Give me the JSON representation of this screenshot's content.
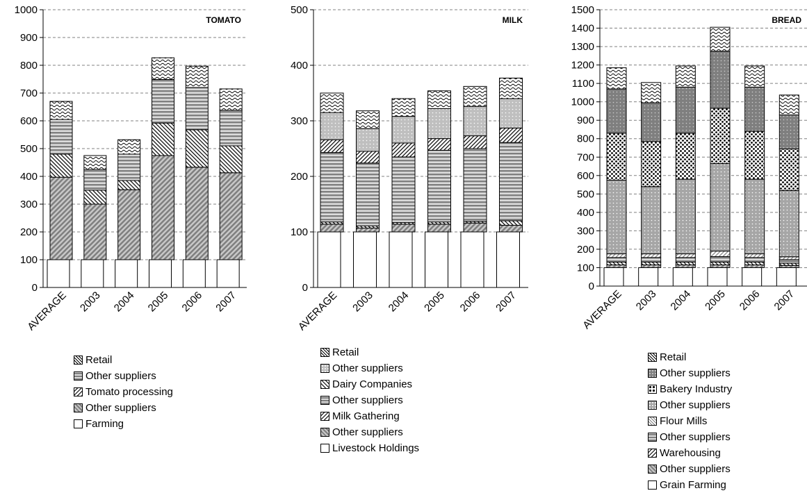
{
  "chart_data": [
    {
      "type": "bar",
      "stacked": true,
      "title": "TOMATO",
      "categories": [
        "AVERAGE",
        "2003",
        "2004",
        "2005",
        "2006",
        "2007"
      ],
      "ylim": [
        0,
        1000
      ],
      "yticks": [
        0,
        100,
        200,
        300,
        400,
        500,
        600,
        700,
        800,
        900,
        1000
      ],
      "grid": true,
      "series": [
        {
          "name": "Farming",
          "pattern": "farm",
          "values": [
            100,
            100,
            100,
            100,
            100,
            100
          ]
        },
        {
          "name": "Other suppliers",
          "pattern": "diag",
          "values": [
            297,
            200,
            252,
            375,
            333,
            313
          ]
        },
        {
          "name": "Tomato processing",
          "pattern": "proc",
          "values": [
            83,
            50,
            33,
            117,
            135,
            97
          ]
        },
        {
          "name": "Other suppliers",
          "pattern": "horiz",
          "values": [
            125,
            75,
            95,
            157,
            152,
            128
          ]
        },
        {
          "name": "Retail",
          "pattern": "retail",
          "values": [
            65,
            50,
            52,
            78,
            77,
            77
          ]
        }
      ]
    },
    {
      "type": "bar",
      "stacked": true,
      "title": "MILK",
      "categories": [
        "AVERAGE",
        "2003",
        "2004",
        "2005",
        "2006",
        "2007"
      ],
      "ylim": [
        0,
        500
      ],
      "yticks": [
        0,
        100,
        200,
        300,
        400,
        500
      ],
      "grid": true,
      "series": [
        {
          "name": "Livestock Holdings",
          "pattern": "farm",
          "values": [
            100,
            100,
            100,
            100,
            100,
            100
          ]
        },
        {
          "name": "Other suppliers",
          "pattern": "diag",
          "values": [
            14,
            7,
            14,
            14,
            16,
            12
          ]
        },
        {
          "name": "Milk Gathering",
          "pattern": "proc",
          "values": [
            4,
            4,
            3,
            4,
            3,
            8
          ]
        },
        {
          "name": "Other suppliers",
          "pattern": "horiz",
          "values": [
            125,
            113,
            118,
            129,
            131,
            141
          ]
        },
        {
          "name": "Dairy Companies",
          "pattern": "dairy",
          "values": [
            23,
            21,
            25,
            21,
            23,
            26
          ]
        },
        {
          "name": "Other suppliers",
          "pattern": "dotlight",
          "values": [
            49,
            41,
            48,
            54,
            53,
            53
          ]
        },
        {
          "name": "Retail",
          "pattern": "retail",
          "values": [
            35,
            32,
            32,
            32,
            36,
            37
          ]
        }
      ]
    },
    {
      "type": "bar",
      "stacked": true,
      "title": "BREAD",
      "categories": [
        "AVERAGE",
        "2003",
        "2004",
        "2005",
        "2006",
        "2007"
      ],
      "ylim": [
        0,
        1500
      ],
      "yticks": [
        0,
        100,
        200,
        300,
        400,
        500,
        600,
        700,
        800,
        900,
        1000,
        1100,
        1200,
        1300,
        1400,
        1500
      ],
      "grid": true,
      "series": [
        {
          "name": "Grain Farming",
          "pattern": "farm",
          "values": [
            100,
            100,
            100,
            100,
            100,
            100
          ]
        },
        {
          "name": "Other suppliers",
          "pattern": "diag",
          "values": [
            15,
            15,
            15,
            15,
            15,
            12
          ]
        },
        {
          "name": "Warehousing",
          "pattern": "proc",
          "values": [
            15,
            15,
            15,
            15,
            15,
            12
          ]
        },
        {
          "name": "Other suppliers",
          "pattern": "horiz",
          "values": [
            25,
            25,
            25,
            30,
            25,
            20
          ]
        },
        {
          "name": "Flour Mills",
          "pattern": "flour",
          "values": [
            20,
            20,
            20,
            30,
            20,
            15
          ]
        },
        {
          "name": "Other suppliers",
          "pattern": "dotmid",
          "values": [
            400,
            365,
            405,
            475,
            405,
            360
          ]
        },
        {
          "name": "Bakery Industry",
          "pattern": "bakery",
          "values": [
            255,
            245,
            250,
            300,
            260,
            225
          ]
        },
        {
          "name": "Other suppliers",
          "pattern": "dotdark",
          "values": [
            240,
            210,
            250,
            310,
            240,
            185
          ]
        },
        {
          "name": "Retail",
          "pattern": "retail",
          "values": [
            115,
            110,
            115,
            130,
            115,
            108
          ]
        }
      ]
    }
  ],
  "legends": {
    "tomato": [
      "Retail",
      "Other suppliers",
      "Tomato processing",
      "Other suppliers",
      "Farming"
    ],
    "milk": [
      "Retail",
      "Other suppliers",
      "Dairy Companies",
      "Other suppliers",
      "Milk Gathering",
      "Other suppliers",
      "Livestock Holdings"
    ],
    "bread": [
      "Retail",
      "Other suppliers",
      "Bakery Industry",
      "Other suppliers",
      "Flour Mills",
      "Other suppliers",
      "Warehousing",
      "Other suppliers",
      "Grain Farming"
    ]
  }
}
